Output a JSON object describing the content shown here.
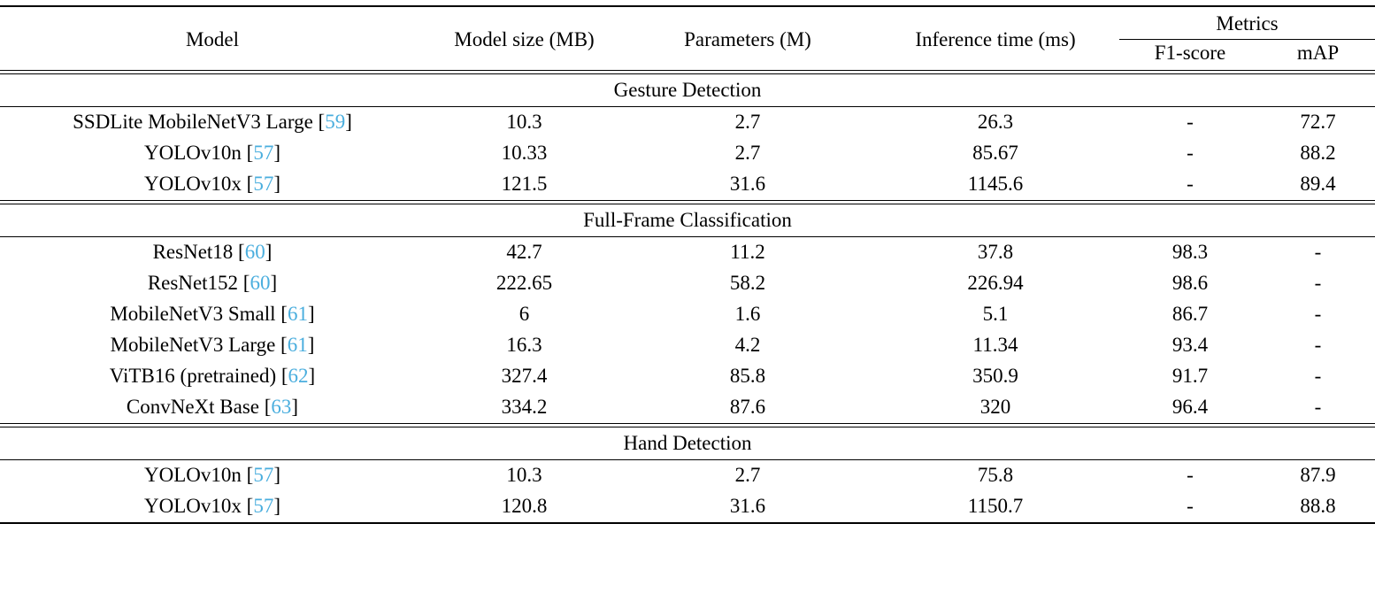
{
  "colors": {
    "citation": "#4aaede",
    "text": "#000000",
    "background": "#ffffff"
  },
  "header": {
    "model": "Model",
    "model_size": "Model size (MB)",
    "parameters": "Parameters (M)",
    "inference_time": "Inference time (ms)",
    "metrics": "Metrics",
    "f1": "F1-score",
    "map": "mAP"
  },
  "sections": [
    {
      "title": "Gesture Detection",
      "rows": [
        {
          "model": "SSDLite MobileNetV3 Large",
          "ref": "59",
          "size": "10.3",
          "params": "2.7",
          "time": "26.3",
          "f1": "-",
          "map": "72.7"
        },
        {
          "model": "YOLOv10n",
          "ref": "57",
          "size": "10.33",
          "params": "2.7",
          "time": "85.67",
          "f1": "-",
          "map": "88.2"
        },
        {
          "model": "YOLOv10x",
          "ref": "57",
          "size": "121.5",
          "params": "31.6",
          "time": "1145.6",
          "f1": "-",
          "map": "89.4",
          "map_bold": true
        }
      ]
    },
    {
      "title": "Full-Frame Classification",
      "rows": [
        {
          "model": "ResNet18",
          "ref": "60",
          "size": "42.7",
          "params": "11.2",
          "time": "37.8",
          "f1": "98.3",
          "map": "-"
        },
        {
          "model": "ResNet152",
          "ref": "60",
          "size": "222.65",
          "params": "58.2",
          "time": "226.94",
          "f1": "98.6",
          "f1_bold": true,
          "map": "-"
        },
        {
          "model": "MobileNetV3 Small",
          "ref": "61",
          "size": "6",
          "params": "1.6",
          "time": "5.1",
          "f1": "86.7",
          "map": "-"
        },
        {
          "model": "MobileNetV3 Large",
          "ref": "61",
          "size": "16.3",
          "params": "4.2",
          "time": "11.34",
          "f1": "93.4",
          "map": "-"
        },
        {
          "model": "ViTB16 (pretrained)",
          "ref": "62",
          "size": "327.4",
          "params": "85.8",
          "time": "350.9",
          "f1": "91.7",
          "map": "-"
        },
        {
          "model": "ConvNeXt Base",
          "ref": "63",
          "size": "334.2",
          "params": "87.6",
          "time": "320",
          "f1": "96.4",
          "map": "-"
        }
      ]
    },
    {
      "title": "Hand Detection",
      "rows": [
        {
          "model": "YOLOv10n",
          "ref": "57",
          "size": "10.3",
          "params": "2.7",
          "time": "75.8",
          "f1": "-",
          "map": "87.9"
        },
        {
          "model": "YOLOv10x",
          "ref": "57",
          "size": "120.8",
          "params": "31.6",
          "time": "1150.7",
          "f1": "-",
          "map": "88.8",
          "map_bold": true
        }
      ]
    }
  ]
}
